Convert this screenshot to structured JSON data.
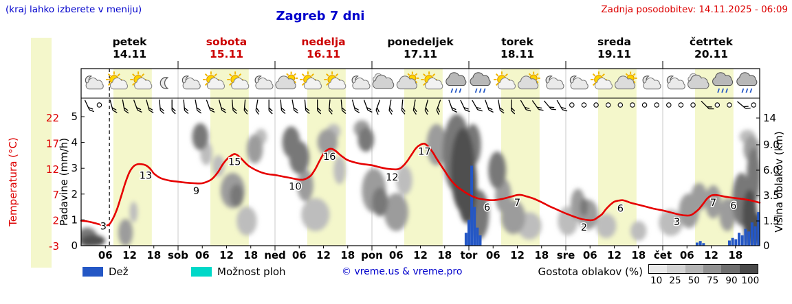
{
  "header": {
    "note": "(kraj lahko izberete v meniju)",
    "title": "Zagreb 7 dni",
    "last_update": "Zadnja posodobitev: 14.11.2025 - 06:09"
  },
  "axes": {
    "temp_label": "Temperatura (°C)",
    "temp_ticks": [
      22,
      17,
      12,
      7,
      2,
      -3
    ],
    "precip_label": "Padavine (mm/h)",
    "precip_ticks": [
      5,
      4,
      3,
      2,
      1,
      0
    ],
    "cloud_label": "Višina oblakov (km)",
    "cloud_ticks": [
      {
        "km": 14,
        "label": "14"
      },
      {
        "km": 9,
        "label": "9.0"
      },
      {
        "km": 6,
        "label": "6.0"
      },
      {
        "km": 3.5,
        "label": "3.5"
      },
      {
        "km": 1.5,
        "label": "1.5"
      },
      {
        "km": 0,
        "label": "0"
      }
    ],
    "hour_labels": [
      "06",
      "12",
      "18"
    ],
    "day_abbrs": [
      "sob",
      "ned",
      "pon",
      "tor",
      "sre",
      "čet"
    ]
  },
  "days": [
    {
      "name": "petek",
      "date": "14.11",
      "highlight": false
    },
    {
      "name": "sobota",
      "date": "15.11",
      "highlight": true
    },
    {
      "name": "nedelja",
      "date": "16.11",
      "highlight": true
    },
    {
      "name": "ponedeljek",
      "date": "17.11",
      "highlight": false
    },
    {
      "name": "torek",
      "date": "18.11",
      "highlight": false
    },
    {
      "name": "sreda",
      "date": "19.11",
      "highlight": false
    },
    {
      "name": "četrtek",
      "date": "20.11",
      "highlight": false
    }
  ],
  "legend": {
    "rain_label": "Dež",
    "showers_label": "Možnost ploh",
    "copyright": "© vreme.us & vreme.pro",
    "cloud_density_label": "Gostota oblakov (%)",
    "density_values": [
      "10",
      "25",
      "50",
      "75",
      "90",
      "100"
    ]
  },
  "colors": {
    "blue_text": "#0000cc",
    "red_text": "#dd0000",
    "temp_line": "#e60000",
    "rain_bar": "#2457c5",
    "showers": "#00d8c8",
    "day_band": "#f4f7cb",
    "cloud_grays": [
      "#ececec",
      "#d8d8d8",
      "#bdbdbd",
      "#9c9c9c",
      "#787878",
      "#4f4f4f"
    ],
    "density_scale": [
      "#e9e9e9",
      "#d2d2d2",
      "#b4b4b4",
      "#929292",
      "#6f6f6f",
      "#4a4a4a"
    ]
  },
  "chart_data": {
    "type": "meteogram",
    "x_axis": {
      "unit": "hours",
      "range": [
        0,
        168
      ],
      "days": 7,
      "tick_every_h": 6
    },
    "now_hour": 7,
    "daylight_band_hours": [
      8,
      17.5
    ],
    "temperature": {
      "unit": "°C",
      "axis_range": [
        -3,
        22
      ],
      "labeled_points_h_value_anchor": [
        [
          5.5,
          3,
          2.4
        ],
        [
          16,
          13,
          12.3
        ],
        [
          28.5,
          9,
          9.3
        ],
        [
          38,
          15,
          15.0
        ],
        [
          53,
          10,
          10.2
        ],
        [
          61.5,
          16,
          16.0
        ],
        [
          77,
          12,
          12.0
        ],
        [
          85,
          17,
          17.0
        ],
        [
          100.5,
          6,
          6.1
        ],
        [
          108,
          7,
          7.0
        ],
        [
          124.5,
          2,
          2.2
        ],
        [
          133.5,
          6,
          5.9
        ],
        [
          147.5,
          3,
          3.3
        ],
        [
          156.5,
          7,
          7.0
        ],
        [
          161.5,
          6,
          6.4
        ]
      ],
      "curve": [
        [
          0,
          2.0
        ],
        [
          2,
          1.8
        ],
        [
          4,
          1.4
        ],
        [
          5,
          1.2
        ],
        [
          6,
          1.1
        ],
        [
          7,
          1.3
        ],
        [
          8,
          2.6
        ],
        [
          9,
          4.5
        ],
        [
          10,
          7.0
        ],
        [
          11,
          9.5
        ],
        [
          12,
          11.5
        ],
        [
          13,
          12.6
        ],
        [
          14,
          13.0
        ],
        [
          15,
          13.0
        ],
        [
          16,
          12.8
        ],
        [
          17,
          12.2
        ],
        [
          18,
          11.2
        ],
        [
          19,
          10.6
        ],
        [
          20,
          10.2
        ],
        [
          22,
          9.8
        ],
        [
          24,
          9.6
        ],
        [
          26,
          9.4
        ],
        [
          28,
          9.3
        ],
        [
          30,
          9.3
        ],
        [
          32,
          9.9
        ],
        [
          33,
          10.6
        ],
        [
          34,
          11.6
        ],
        [
          35,
          12.9
        ],
        [
          36,
          13.9
        ],
        [
          37,
          14.6
        ],
        [
          38,
          15.0
        ],
        [
          39,
          14.6
        ],
        [
          40,
          13.8
        ],
        [
          41,
          13.0
        ],
        [
          42,
          12.4
        ],
        [
          44,
          11.6
        ],
        [
          46,
          11.1
        ],
        [
          48,
          10.9
        ],
        [
          50,
          10.6
        ],
        [
          52,
          10.3
        ],
        [
          54,
          10.0
        ],
        [
          55,
          10.0
        ],
        [
          56,
          10.3
        ],
        [
          57,
          10.9
        ],
        [
          58,
          12.1
        ],
        [
          59,
          13.6
        ],
        [
          60,
          15.0
        ],
        [
          61,
          15.8
        ],
        [
          62,
          16.0
        ],
        [
          63,
          15.6
        ],
        [
          64,
          14.9
        ],
        [
          65,
          14.3
        ],
        [
          66,
          13.8
        ],
        [
          68,
          13.3
        ],
        [
          70,
          13.0
        ],
        [
          72,
          12.8
        ],
        [
          74,
          12.4
        ],
        [
          76,
          12.1
        ],
        [
          78,
          12.0
        ],
        [
          79,
          12.2
        ],
        [
          80,
          12.9
        ],
        [
          81,
          13.9
        ],
        [
          82,
          15.1
        ],
        [
          83,
          16.2
        ],
        [
          84,
          16.8
        ],
        [
          85,
          17.0
        ],
        [
          86,
          16.4
        ],
        [
          87,
          15.4
        ],
        [
          88,
          14.1
        ],
        [
          89,
          12.9
        ],
        [
          90,
          11.7
        ],
        [
          91,
          10.5
        ],
        [
          92,
          9.5
        ],
        [
          93,
          8.7
        ],
        [
          94,
          8.1
        ],
        [
          96,
          7.1
        ],
        [
          98,
          6.4
        ],
        [
          100,
          6.1
        ],
        [
          102,
          6.0
        ],
        [
          104,
          6.2
        ],
        [
          106,
          6.6
        ],
        [
          108,
          7.0
        ],
        [
          109,
          7.0
        ],
        [
          110,
          6.8
        ],
        [
          112,
          6.3
        ],
        [
          114,
          5.6
        ],
        [
          116,
          4.8
        ],
        [
          118,
          4.1
        ],
        [
          120,
          3.4
        ],
        [
          122,
          2.8
        ],
        [
          124,
          2.3
        ],
        [
          126,
          2.1
        ],
        [
          127,
          2.2
        ],
        [
          128,
          2.7
        ],
        [
          129,
          3.3
        ],
        [
          130,
          4.3
        ],
        [
          131,
          5.1
        ],
        [
          132,
          5.7
        ],
        [
          133,
          5.9
        ],
        [
          134,
          6.0
        ],
        [
          135,
          5.8
        ],
        [
          136,
          5.5
        ],
        [
          138,
          5.1
        ],
        [
          140,
          4.7
        ],
        [
          142,
          4.3
        ],
        [
          144,
          4.0
        ],
        [
          146,
          3.6
        ],
        [
          148,
          3.2
        ],
        [
          150,
          3.0
        ],
        [
          151,
          3.1
        ],
        [
          152,
          3.6
        ],
        [
          153,
          4.3
        ],
        [
          154,
          5.3
        ],
        [
          155,
          6.3
        ],
        [
          156,
          6.9
        ],
        [
          157,
          7.0
        ],
        [
          158,
          6.9
        ],
        [
          160,
          6.6
        ],
        [
          162,
          6.4
        ],
        [
          164,
          6.2
        ],
        [
          166,
          5.9
        ],
        [
          168,
          5.5
        ]
      ]
    },
    "rain": {
      "unit": "mm/h",
      "axis_range": [
        0,
        5
      ],
      "bars": [
        [
          95.3,
          0.5
        ],
        [
          96.0,
          1.0
        ],
        [
          96.7,
          3.1
        ],
        [
          97.4,
          1.5
        ],
        [
          98.1,
          0.7
        ],
        [
          98.8,
          0.4
        ],
        [
          152.5,
          0.12
        ],
        [
          153.3,
          0.18
        ],
        [
          154.1,
          0.1
        ],
        [
          160.5,
          0.2
        ],
        [
          161.3,
          0.3
        ],
        [
          162.1,
          0.25
        ],
        [
          162.9,
          0.5
        ],
        [
          163.7,
          0.4
        ],
        [
          164.5,
          0.65
        ],
        [
          165.3,
          0.55
        ],
        [
          166.1,
          0.9
        ],
        [
          166.9,
          0.75
        ],
        [
          167.7,
          1.3
        ]
      ]
    },
    "clouds": {
      "unit_y": "km",
      "axis_ticks_km": [
        0,
        1.5,
        3.5,
        6,
        9,
        14
      ],
      "blobs_h_km_rh_rkm_density": [
        [
          1.5,
          0.5,
          2.5,
          0.7,
          4
        ],
        [
          3,
          0.3,
          3,
          0.4,
          5
        ],
        [
          11,
          0.8,
          1.8,
          0.9,
          3
        ],
        [
          13,
          2.2,
          1,
          0.8,
          2
        ],
        [
          29.5,
          10.5,
          2,
          2.3,
          4
        ],
        [
          31,
          8,
          1.5,
          1.5,
          2
        ],
        [
          34,
          6.5,
          1.5,
          1.2,
          2
        ],
        [
          37.5,
          4,
          3,
          1.6,
          3
        ],
        [
          38.5,
          3.5,
          1.7,
          1,
          4
        ],
        [
          43,
          8.5,
          2,
          2,
          3
        ],
        [
          44.5,
          10.5,
          1.5,
          1.5,
          2
        ],
        [
          41,
          1.5,
          2.5,
          1,
          2
        ],
        [
          52,
          9.5,
          2.2,
          2.4,
          4
        ],
        [
          54,
          7.5,
          2.5,
          2,
          4
        ],
        [
          55.5,
          4.5,
          2,
          1.5,
          3
        ],
        [
          58,
          2,
          3.5,
          1.2,
          2
        ],
        [
          61,
          9.5,
          2.5,
          2,
          3
        ],
        [
          62.5,
          11.5,
          1.7,
          1.4,
          2
        ],
        [
          64,
          6,
          1.5,
          1.5,
          2
        ],
        [
          69.5,
          12,
          2,
          1.6,
          3
        ],
        [
          70.5,
          10,
          2,
          2,
          4
        ],
        [
          72.5,
          4,
          3,
          2,
          3
        ],
        [
          74,
          3,
          2,
          1.2,
          4
        ],
        [
          78,
          2.2,
          3,
          1.4,
          3
        ],
        [
          80,
          5,
          2,
          1.5,
          2
        ],
        [
          88,
          9,
          2.5,
          3,
          3
        ],
        [
          93,
          8,
          3.5,
          5,
          4
        ],
        [
          94.5,
          6,
          3,
          4.5,
          5
        ],
        [
          95.5,
          4.5,
          2.5,
          3.5,
          5
        ],
        [
          97,
          9,
          2,
          3,
          4
        ],
        [
          98.5,
          2,
          2.5,
          1.8,
          4
        ],
        [
          103,
          6,
          2.2,
          2,
          4
        ],
        [
          104.5,
          3.5,
          2,
          1.5,
          3
        ],
        [
          107,
          1.8,
          3,
          1.2,
          3
        ],
        [
          111,
          1.2,
          3,
          0.9,
          2
        ],
        [
          120.5,
          1.5,
          2.5,
          1,
          2
        ],
        [
          123,
          2.8,
          1.8,
          1.3,
          3
        ],
        [
          125.5,
          2,
          2.5,
          1.1,
          3
        ],
        [
          124.5,
          2.6,
          1,
          0.7,
          4
        ],
        [
          130,
          1.2,
          2.5,
          0.8,
          2
        ],
        [
          138,
          0.9,
          2,
          0.6,
          2
        ],
        [
          146,
          1.4,
          3,
          0.9,
          2
        ],
        [
          150.5,
          2.3,
          2.5,
          1.3,
          3
        ],
        [
          153,
          3.4,
          2,
          1.2,
          3
        ],
        [
          156.5,
          3,
          2,
          1.4,
          3
        ],
        [
          160,
          2,
          2,
          1.2,
          3
        ],
        [
          163.5,
          3.2,
          2.3,
          2.2,
          4
        ],
        [
          165.5,
          2,
          1.8,
          1.8,
          5
        ],
        [
          166.5,
          5.5,
          1.7,
          2.8,
          4
        ],
        [
          166,
          8.5,
          2,
          1.8,
          3
        ],
        [
          165,
          10.5,
          2,
          1.3,
          2
        ],
        [
          167.5,
          1,
          1.5,
          1,
          5
        ],
        [
          166,
          0.5,
          2,
          0.5,
          4
        ]
      ]
    },
    "icons": [
      "moon-cloud",
      "sun-cloud",
      "sun-cloud",
      "moon",
      "moon-cloud",
      "sun-cloud",
      "sun-cloud",
      "moon-cloud",
      "cloud-sun",
      "sun-cloud",
      "sun-cloud",
      "moon-cloud",
      "cloud",
      "cloud-sun",
      "sun-cloud",
      "cloud-rain",
      "cloud-rain",
      "sun-cloud",
      "cloud-sun",
      "moon-cloud",
      "moon-cloud",
      "sun-cloud",
      "cloud-sun",
      "moon-cloud",
      "moon-cloud",
      "cloud",
      "cloud-rain",
      "cloud-rain"
    ],
    "wind_every_3h": [
      "b65",
      "c",
      "b75",
      "b80",
      "b70",
      "b75",
      "b85",
      "b90",
      "b85",
      "b80",
      "b70",
      "b75",
      "b85",
      "b95",
      "b100",
      "b90",
      "b85",
      "b80",
      "b85",
      "b90",
      "b95",
      "b85",
      "b75",
      "b70",
      "b110",
      "b100",
      "b95",
      "b100",
      "b105",
      "b110",
      "b70",
      "b65",
      "b60",
      "b70",
      "b80",
      "b90",
      "b60",
      "b55",
      "b50",
      "b60",
      "c",
      "c",
      "c",
      "c",
      "c",
      "c",
      "c",
      "c",
      "c",
      "c",
      "c",
      "b45",
      "c",
      "c",
      "b40",
      "c"
    ]
  }
}
